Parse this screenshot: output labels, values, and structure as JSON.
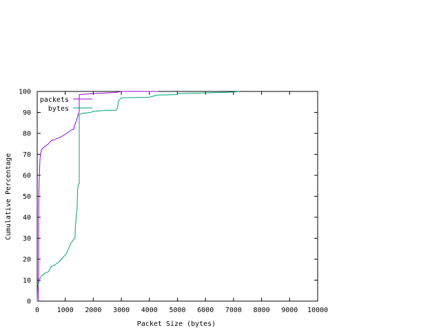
{
  "chart_data": {
    "type": "line",
    "title": "",
    "xlabel": "Packet Size (bytes)",
    "ylabel": "Cumulative Percentage",
    "xlim": [
      0,
      10000
    ],
    "ylim": [
      0,
      100
    ],
    "x_ticks": [
      0,
      1000,
      2000,
      3000,
      4000,
      5000,
      6000,
      7000,
      8000,
      9000,
      10000
    ],
    "y_ticks": [
      0,
      10,
      20,
      30,
      40,
      50,
      60,
      70,
      80,
      90,
      100
    ],
    "grid": false,
    "legend_position": "top-left",
    "step": true,
    "series": [
      {
        "name": "packets",
        "color": "#9400d3",
        "x": [
          0,
          40,
          40,
          52,
          52,
          60,
          60,
          80,
          100,
          120,
          150,
          200,
          300,
          400,
          500,
          600,
          800,
          1000,
          1100,
          1200,
          1300,
          1360,
          1400,
          1440,
          1460,
          1480,
          1500,
          1500,
          2000,
          2800,
          3000,
          4300
        ],
        "y": [
          0,
          0,
          11,
          11,
          40,
          48,
          52,
          62,
          68,
          70,
          72,
          73,
          74,
          75,
          76.5,
          77,
          78,
          79.5,
          80.5,
          81.5,
          82,
          85,
          86,
          88,
          89,
          89.5,
          90,
          98.5,
          99,
          99.5,
          100,
          100
        ]
      },
      {
        "name": "bytes",
        "color": "#009e73",
        "x": [
          0,
          10,
          20,
          40,
          60,
          80,
          100,
          150,
          200,
          300,
          400,
          500,
          600,
          700,
          800,
          900,
          1000,
          1050,
          1100,
          1150,
          1200,
          1250,
          1300,
          1350,
          1360,
          1380,
          1400,
          1420,
          1440,
          1460,
          1480,
          1500,
          1500,
          1600,
          1900,
          2000,
          2500,
          2800,
          2860,
          2900,
          3000,
          4000,
          4200,
          4300,
          5000,
          5000,
          6000,
          7000,
          7200
        ],
        "y": [
          0,
          5,
          7,
          8,
          9,
          10,
          11,
          12,
          12.5,
          13.5,
          14,
          16.5,
          17,
          18,
          19,
          20.5,
          22,
          23,
          24.5,
          26,
          27.5,
          28.5,
          29.5,
          30,
          36,
          38,
          42,
          44,
          53,
          55,
          56,
          56,
          89,
          89.5,
          90,
          90.5,
          91,
          91,
          92,
          95.5,
          97,
          97.2,
          98,
          98.3,
          98.5,
          99,
          99.3,
          99.7,
          100
        ]
      }
    ]
  }
}
